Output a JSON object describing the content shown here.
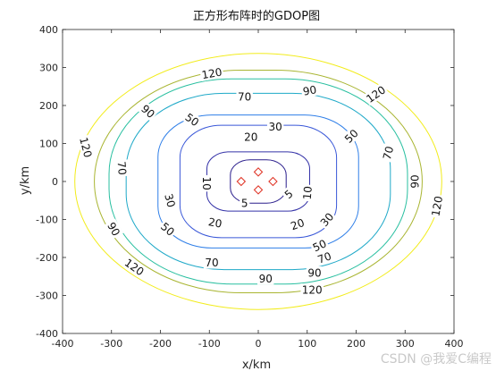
{
  "chart_data": {
    "type": "contour",
    "title": "正方形布阵时的GDOP图",
    "xlabel": "x/km",
    "ylabel": "y/km",
    "xlim": [
      -400,
      400
    ],
    "ylim": [
      -400,
      400
    ],
    "xticks": [
      "-400",
      "-300",
      "-200",
      "-100",
      "0",
      "100",
      "200",
      "300",
      "400"
    ],
    "yticks": [
      "400",
      "300",
      "200",
      "100",
      "0",
      "-100",
      "-200",
      "-300",
      "-400"
    ],
    "grid": false,
    "levels": [
      {
        "value": 5,
        "label": "5",
        "color": "#2a1e8c",
        "half_width_km": 57,
        "half_height_km": 57,
        "corner_km": 40
      },
      {
        "value": 10,
        "label": "10",
        "color": "#3533a8",
        "half_width_km": 105,
        "half_height_km": 78,
        "corner_km": 45
      },
      {
        "value": 20,
        "label": "20",
        "color": "#3a58d8",
        "half_width_km": 160,
        "half_height_km": 148,
        "corner_km": 85
      },
      {
        "value": 30,
        "label": "30",
        "color": "#2f7fe8",
        "half_width_km": 205,
        "half_height_km": 175,
        "corner_km": 110
      },
      {
        "value": 50,
        "label": "50",
        "color": "#1fa9c8",
        "half_width_km": 270,
        "half_height_km": 232,
        "corner_km": 200
      },
      {
        "value": 70,
        "label": "70",
        "color": "#28bfa0",
        "half_width_km": 305,
        "half_height_km": 270,
        "corner_km": 250
      },
      {
        "value": 90,
        "label": "90",
        "color": "#a9b532",
        "half_width_km": 335,
        "half_height_km": 293,
        "corner_km": 300
      },
      {
        "value": 120,
        "label": "120",
        "color": "#f2ec1c",
        "half_width_km": 375,
        "half_height_km": 337,
        "corner_km": 375
      }
    ],
    "contour_labels": [
      {
        "text": "5",
        "x": -28,
        "y": -57,
        "rot": 0
      },
      {
        "text": "5",
        "x": 62,
        "y": -33,
        "rot": -40
      },
      {
        "text": "10",
        "x": -105,
        "y": -5,
        "rot": 90
      },
      {
        "text": "10",
        "x": 100,
        "y": -30,
        "rot": -85
      },
      {
        "text": "20",
        "x": -15,
        "y": 118,
        "rot": 0
      },
      {
        "text": "20",
        "x": -88,
        "y": -108,
        "rot": 10
      },
      {
        "text": "20",
        "x": 80,
        "y": -112,
        "rot": -20
      },
      {
        "text": "30",
        "x": 35,
        "y": 145,
        "rot": 0
      },
      {
        "text": "30",
        "x": -180,
        "y": -50,
        "rot": 75
      },
      {
        "text": "30",
        "x": 140,
        "y": -100,
        "rot": -50
      },
      {
        "text": "50",
        "x": -135,
        "y": 163,
        "rot": 35
      },
      {
        "text": "50",
        "x": 190,
        "y": 120,
        "rot": -45
      },
      {
        "text": "50",
        "x": -185,
        "y": -125,
        "rot": 40
      },
      {
        "text": "50",
        "x": 125,
        "y": -168,
        "rot": -25
      },
      {
        "text": "70",
        "x": -28,
        "y": 223,
        "rot": 0
      },
      {
        "text": "70",
        "x": -278,
        "y": 35,
        "rot": 85
      },
      {
        "text": "70",
        "x": 265,
        "y": 75,
        "rot": -75
      },
      {
        "text": "70",
        "x": -95,
        "y": -213,
        "rot": 0
      },
      {
        "text": "70",
        "x": 135,
        "y": -200,
        "rot": -20
      },
      {
        "text": "90",
        "x": 105,
        "y": 240,
        "rot": -10
      },
      {
        "text": "90",
        "x": -225,
        "y": 185,
        "rot": 40
      },
      {
        "text": "90",
        "x": 320,
        "y": 0,
        "rot": -90
      },
      {
        "text": "90",
        "x": -295,
        "y": -125,
        "rot": 60
      },
      {
        "text": "90",
        "x": 15,
        "y": -255,
        "rot": 0
      },
      {
        "text": "90",
        "x": 115,
        "y": -240,
        "rot": 0
      },
      {
        "text": "120",
        "x": -95,
        "y": 285,
        "rot": -10
      },
      {
        "text": "120",
        "x": 240,
        "y": 230,
        "rot": -35
      },
      {
        "text": "120",
        "x": -352,
        "y": 90,
        "rot": 75
      },
      {
        "text": "120",
        "x": 365,
        "y": -65,
        "rot": -80
      },
      {
        "text": "120",
        "x": -253,
        "y": -225,
        "rot": 35
      },
      {
        "text": "120",
        "x": 110,
        "y": -285,
        "rot": 0
      }
    ],
    "stations": {
      "marker": "diamond",
      "color": "#e0382a",
      "points": [
        {
          "x": 0,
          "y": 25
        },
        {
          "x": -35,
          "y": 0
        },
        {
          "x": 30,
          "y": 0
        },
        {
          "x": 0,
          "y": -22
        }
      ]
    }
  },
  "watermark": "CSDN @我爱C编程"
}
